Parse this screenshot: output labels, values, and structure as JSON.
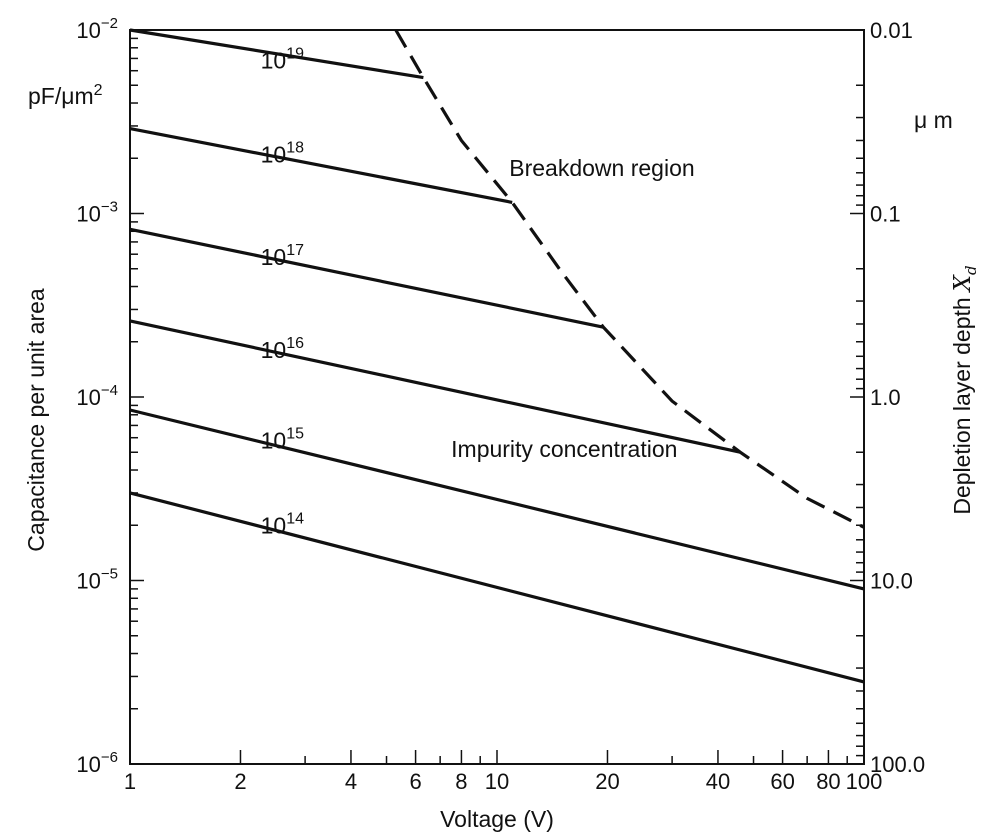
{
  "chart_data": {
    "type": "line",
    "xlabel": "Voltage (V)",
    "ylabel": "Capacitance per unit area",
    "y_unit": "pF/μm",
    "y_unit_exp": "2",
    "y2label": "Depletion layer depth",
    "y2label_symbol": "X",
    "y2label_subscript": "d",
    "y2_unit": "μ m",
    "x_scale": "log",
    "y_scale": "log",
    "xlim": [
      1,
      100
    ],
    "ylim": [
      1e-06,
      0.01
    ],
    "y2lim": [
      0.01,
      100
    ],
    "x_ticks": [
      1,
      2,
      4,
      6,
      8,
      10,
      20,
      40,
      60,
      80,
      100
    ],
    "x_tick_labels": [
      "1",
      "2",
      "4",
      "6",
      "8",
      "10",
      "20",
      "40",
      "60",
      "80",
      "100"
    ],
    "y_ticks": [
      {
        "base": "10",
        "exp": "−2",
        "value": 0.01
      },
      {
        "base": "10",
        "exp": "−3",
        "value": 0.001
      },
      {
        "base": "10",
        "exp": "−4",
        "value": 0.0001
      },
      {
        "base": "10",
        "exp": "−5",
        "value": 1e-05
      },
      {
        "base": "10",
        "exp": "−6",
        "value": 1e-06
      }
    ],
    "y2_ticks": [
      {
        "label": "0.01",
        "value": 0.01
      },
      {
        "label": "0.1",
        "value": 0.1
      },
      {
        "label": "1.0",
        "value": 1.0
      },
      {
        "label": "10.0",
        "value": 10.0
      },
      {
        "label": "100.0",
        "value": 100.0
      }
    ],
    "grid": false,
    "series": [
      {
        "base": "10",
        "exp": "19",
        "x": [
          1,
          6.3
        ],
        "y": [
          0.01,
          0.0055
        ],
        "label_at": [
          2.6,
          0.0068
        ]
      },
      {
        "base": "10",
        "exp": "18",
        "x": [
          1,
          11
        ],
        "y": [
          0.0029,
          0.00115
        ],
        "label_at": [
          2.6,
          0.0021
        ]
      },
      {
        "base": "10",
        "exp": "17",
        "x": [
          1,
          19.5
        ],
        "y": [
          0.00082,
          0.00024
        ],
        "label_at": [
          2.6,
          0.00058
        ]
      },
      {
        "base": "10",
        "exp": "16",
        "x": [
          1,
          46
        ],
        "y": [
          0.00026,
          5e-05
        ],
        "label_at": [
          2.6,
          0.00018
        ]
      },
      {
        "base": "10",
        "exp": "15",
        "x": [
          1,
          100
        ],
        "y": [
          8.5e-05,
          9e-06
        ],
        "label_at": [
          2.6,
          5.8e-05
        ]
      },
      {
        "base": "10",
        "exp": "14",
        "x": [
          1,
          100
        ],
        "y": [
          3e-05,
          2.8e-06
        ],
        "label_at": [
          2.6,
          2e-05
        ]
      }
    ],
    "breakdown_curve": {
      "style": "dashed",
      "x": [
        5.3,
        6.3,
        8,
        11,
        15,
        19.5,
        30,
        46,
        70,
        100
      ],
      "y": [
        0.01,
        0.0055,
        0.0025,
        0.00115,
        0.00048,
        0.00024,
        9.5e-05,
        5e-05,
        2.8e-05,
        1.95e-05
      ]
    },
    "annotations": [
      {
        "text": "Breakdown region",
        "x": 10.8,
        "y": 0.0016
      },
      {
        "text": "Impurity concentration",
        "x": 7.5,
        "y": 4.7e-05
      }
    ],
    "colors": {
      "line": "#111111",
      "background": "#ffffff"
    }
  }
}
